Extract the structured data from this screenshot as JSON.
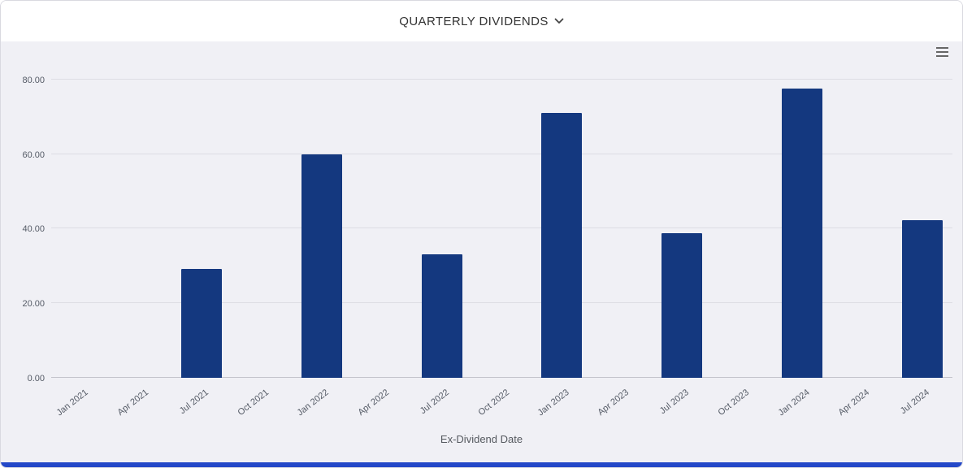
{
  "header": {
    "title": "QUARTERLY DIVIDENDS"
  },
  "menu": {
    "icon": "hamburger-icon"
  },
  "chart_data": {
    "type": "bar",
    "title": "QUARTERLY DIVIDENDS",
    "xlabel": "Ex-Dividend Date",
    "ylabel": "",
    "categories": [
      "Jan 2021",
      "Apr 2021",
      "Jul 2021",
      "Oct 2021",
      "Jan 2022",
      "Apr 2022",
      "Jul 2022",
      "Oct 2022",
      "Jan 2023",
      "Apr 2023",
      "Jul 2023",
      "Oct 2023",
      "Jan 2024",
      "Apr 2024",
      "Jul 2024"
    ],
    "values": [
      0,
      0,
      29.3,
      0,
      60,
      0,
      33.2,
      0,
      71,
      0,
      38.8,
      0,
      77.5,
      0,
      42.2
    ],
    "ylim": [
      0,
      88
    ],
    "yticks": [
      0,
      20,
      40,
      60,
      80
    ],
    "ytick_labels": [
      "0.00",
      "20.00",
      "40.00",
      "60.00",
      "80.00"
    ],
    "grid": true,
    "legend": "none",
    "bar_color": "#14387f"
  },
  "colors": {
    "plot_background": "#f0f0f5",
    "bar": "#14387f",
    "gridline": "#dddde4",
    "baseline": "#c4c4cc",
    "bottom_accent": "#2448c8",
    "text_muted": "#555b66"
  }
}
